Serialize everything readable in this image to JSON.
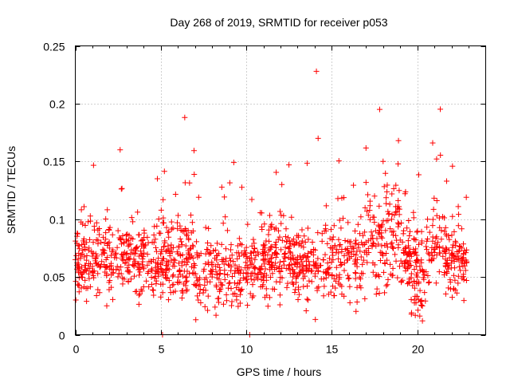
{
  "chart_data": {
    "type": "scatter",
    "title": "Day 268 of 2019, SRMTID for receiver p053",
    "xlabel": "GPS time / hours",
    "ylabel": "SRMTID / TECUs",
    "xlim": [
      0,
      24
    ],
    "ylim": [
      0,
      0.25
    ],
    "xticks": [
      "0",
      "5",
      "10",
      "15",
      "20"
    ],
    "xtick_values": [
      0,
      5,
      10,
      15,
      20
    ],
    "yticks": [
      "0",
      "0.05",
      "0.1",
      "0.15",
      "0.2",
      "0.25"
    ],
    "ytick_values": [
      0,
      0.05,
      0.1,
      0.15,
      0.2,
      0.25
    ],
    "grid": true,
    "marker": "plus",
    "color": "#ff0000",
    "series": [
      {
        "name": "SRMTID",
        "note": "Dense scatter of roughly 2000 points between 0 and 23 hours, mostly 0.02-0.11 TECU; listed points are the distinct features visible",
        "x": [
          0.0,
          0.2,
          0.4,
          0.6,
          0.8,
          1.0,
          1.2,
          1.5,
          1.8,
          2.0,
          2.5,
          2.8,
          3.0,
          3.5,
          4.0,
          4.5,
          4.8,
          5.0,
          5.3,
          5.6,
          6.0,
          6.4,
          6.6,
          7.0,
          7.5,
          8.0,
          8.5,
          9.0,
          9.5,
          10.0,
          10.5,
          11.0,
          11.5,
          12.0,
          12.5,
          13.0,
          13.5,
          14.0,
          14.1,
          14.2,
          14.5,
          15.0,
          15.5,
          16.0,
          16.5,
          17.0,
          17.5,
          17.8,
          18.0,
          18.5,
          18.9,
          19.2,
          19.5,
          20.0,
          20.3,
          20.6,
          20.9,
          21.2,
          21.5,
          22.0,
          22.3,
          22.6,
          5.1,
          10.2
        ],
        "y": [
          0.065,
          0.055,
          0.07,
          0.06,
          0.075,
          0.068,
          0.07,
          0.08,
          0.065,
          0.075,
          0.09,
          0.07,
          0.065,
          0.07,
          0.075,
          0.08,
          0.135,
          0.07,
          0.06,
          0.075,
          0.07,
          0.188,
          0.09,
          0.06,
          0.055,
          0.05,
          0.045,
          0.06,
          0.055,
          0.05,
          0.065,
          0.07,
          0.06,
          0.055,
          0.06,
          0.065,
          0.055,
          0.06,
          0.228,
          0.17,
          0.065,
          0.075,
          0.06,
          0.07,
          0.065,
          0.08,
          0.12,
          0.195,
          0.15,
          0.1,
          0.168,
          0.09,
          0.075,
          0.05,
          0.012,
          0.1,
          0.166,
          0.08,
          0.075,
          0.07,
          0.065,
          0.075,
          0.0,
          0.0
        ]
      }
    ]
  }
}
